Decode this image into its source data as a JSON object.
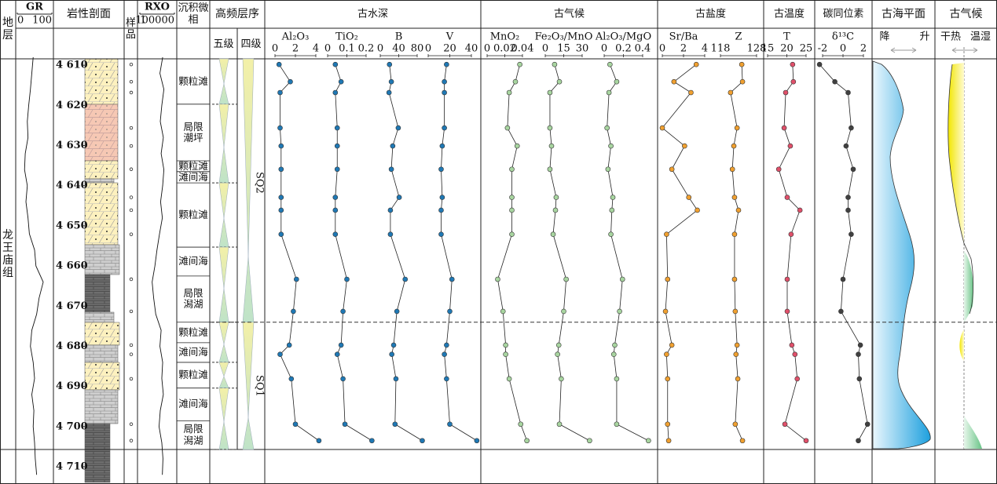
{
  "chart_data": {
    "type": "well-log",
    "formation": "龙王庙组",
    "headers": {
      "strata": "地层",
      "lithology": "岩性剖面",
      "samples": "样品",
      "facies": "沉积微相",
      "sequence": "高频层序",
      "sequence_5": "五级",
      "sequence_4": "四级",
      "sea_level": "古海平面",
      "sea_fall": "降",
      "sea_rise": "升",
      "climate": "古气候",
      "climate_dry": "干热",
      "climate_wet": "温湿"
    },
    "ylim": [
      4608.4,
      4705.7
    ],
    "depth_ticks": [
      {
        "value": 4610,
        "label": "4 610"
      },
      {
        "value": 4620,
        "label": "4 620"
      },
      {
        "value": 4630,
        "label": "4 630"
      },
      {
        "value": 4640,
        "label": "4 640"
      },
      {
        "value": 4650,
        "label": "4 650"
      },
      {
        "value": 4660,
        "label": "4 660"
      },
      {
        "value": 4670,
        "label": "4 670"
      },
      {
        "value": 4680,
        "label": "4 680"
      },
      {
        "value": 4690,
        "label": "4 690"
      },
      {
        "value": 4700,
        "label": "4 700"
      },
      {
        "value": 4710,
        "label": "4 710"
      }
    ],
    "log_depths": [
      4608,
      4612,
      4616,
      4620,
      4624,
      4628,
      4632,
      4636,
      4640,
      4644,
      4648,
      4652,
      4656,
      4660,
      4664,
      4668,
      4672,
      4676,
      4680,
      4684,
      4688,
      4692,
      4696,
      4700,
      4704,
      4708,
      4712
    ],
    "gr": {
      "name": "GR",
      "xlim": [
        0,
        100
      ],
      "xticks": [
        0,
        100
      ],
      "values": [
        46,
        42,
        38,
        33,
        29,
        31,
        23,
        21,
        29,
        25,
        31,
        35,
        50,
        54,
        75,
        63,
        56,
        42,
        38,
        46,
        50,
        42,
        48,
        46,
        50,
        52,
        56
      ]
    },
    "rxo": {
      "name": "RXO",
      "log": true,
      "xlim": [
        1,
        100000
      ],
      "xticks": [
        1,
        100000
      ],
      "values": [
        2000,
        800,
        3000,
        1500,
        900,
        2500,
        1200,
        3000,
        2000,
        1000,
        1800,
        700,
        300,
        150,
        60,
        100,
        200,
        1200,
        800,
        2000,
        1500,
        2500,
        900,
        600,
        1500,
        2200,
        1800
      ]
    },
    "depths": [
      4609.8,
      4614.1,
      4616.8,
      4625.6,
      4630.1,
      4635.9,
      4642.9,
      4646.1,
      4652.1,
      4663.3,
      4671.3,
      4679.7,
      4682.0,
      4688.1,
      4699.4,
      4703.5
    ],
    "groups": [
      {
        "title": "古水深",
        "panels": [
          {
            "name": "Al₂O₃",
            "color": "#1f78b4",
            "xlim": [
              0,
              4
            ],
            "xticks": [
              0,
              2,
              4
            ],
            "values": [
              0.4,
              1.5,
              0.5,
              0.5,
              0.6,
              0.6,
              0.6,
              0.6,
              0.6,
              2.1,
              1.8,
              1.4,
              0.5,
              1.6,
              2.0,
              4.3
            ]
          },
          {
            "name": "TiO₂",
            "color": "#1f78b4",
            "xlim": [
              0,
              0.2
            ],
            "xticks": [
              0,
              0.1,
              0.2
            ],
            "values": [
              0.04,
              0.07,
              0.04,
              0.05,
              0.05,
              0.05,
              0.04,
              0.04,
              0.04,
              0.1,
              0.08,
              0.07,
              0.05,
              0.08,
              0.09,
              0.23
            ]
          },
          {
            "name": "B",
            "color": "#1f78b4",
            "xlim": [
              0,
              80
            ],
            "xticks": [
              0,
              40,
              80
            ],
            "values": [
              20,
              24,
              19,
              39,
              27,
              24,
              41,
              22,
              22,
              54,
              36,
              29,
              25,
              34,
              32,
              91
            ]
          },
          {
            "name": "V",
            "color": "#1f78b4",
            "xlim": [
              0,
              40
            ],
            "xticks": [
              0,
              20,
              40
            ],
            "values": [
              17,
              15,
              15,
              15,
              13,
              12,
              13,
              12,
              12,
              22,
              20,
              17,
              15,
              17,
              20,
              45
            ]
          }
        ]
      },
      {
        "title": "古气候",
        "panels": [
          {
            "name": "MnO₂",
            "color": "#a8d5a0",
            "xlim": [
              0,
              0.04
            ],
            "xticks": [
              0,
              0.02,
              0.04
            ],
            "values": [
              0.037,
              0.032,
              0.025,
              0.023,
              0.034,
              0.028,
              0.028,
              0.028,
              0.028,
              0.012,
              0.018,
              0.021,
              0.021,
              0.025,
              0.038,
              0.045
            ]
          },
          {
            "name": "Fe₂O₃/MnO",
            "color": "#a8d5a0",
            "xlim": [
              0,
              30
            ],
            "xticks": [
              0,
              15,
              30
            ],
            "values": [
              7.6,
              11.5,
              3.8,
              3.8,
              5.1,
              3.8,
              8.9,
              8.3,
              6.4,
              17,
              15,
              11,
              10,
              13,
              11.5,
              36
            ]
          },
          {
            "name": "Al₂O₃/MgO",
            "color": "#a8d5a0",
            "xlim": [
              0,
              0.4
            ],
            "xticks": [
              0,
              0.2,
              0.4
            ],
            "values": [
              0.06,
              0.13,
              0.05,
              0.03,
              0.07,
              0.04,
              0.09,
              0.08,
              0.07,
              0.19,
              0.16,
              0.11,
              0.1,
              0.13,
              0.13,
              0.46
            ]
          }
        ]
      },
      {
        "title": "古盐度",
        "panels": [
          {
            "name": "Sr/Ba",
            "color": "#f0a030",
            "xlim": [
              0,
              4
            ],
            "xticks": [
              0,
              2,
              4
            ],
            "values": [
              3.2,
              1.1,
              2.7,
              0.0,
              2.1,
              0.9,
              2.5,
              3.3,
              0.4,
              0.5,
              0.3,
              0.9,
              0.4,
              0.5,
              0.5,
              0.6
            ]
          },
          {
            "name": "Z",
            "color": "#f0a030",
            "xlim": [
              118,
              128
            ],
            "xticks": [
              118,
              128
            ],
            "values": [
              123.9,
              124.1,
              120.8,
              122.6,
              121.7,
              121.3,
              121.9,
              123.0,
              121.9,
              121.9,
              122.1,
              122.6,
              122.3,
              122.8,
              122.1,
              124.1
            ]
          }
        ]
      },
      {
        "title": "古温度",
        "panels": [
          {
            "name": "T",
            "color": "#e0506a",
            "xlim": [
              15,
              25
            ],
            "xticks": [
              15,
              20,
              25
            ],
            "values": [
              21.5,
              21.7,
              19.7,
              19.3,
              20.9,
              17.9,
              20.1,
              23.4,
              21.1,
              20.1,
              20.1,
              21.3,
              22.1,
              22.7,
              19.5,
              25.0
            ]
          }
        ]
      },
      {
        "title": "碳同位素",
        "panels": [
          {
            "name": "δ¹³C",
            "color": "#404040",
            "xlim": [
              -2,
              2
            ],
            "xticks": [
              -2,
              0,
              2
            ],
            "values": [
              -2.3,
              -0.8,
              0.5,
              0.8,
              0.3,
              1.0,
              0.5,
              0.5,
              0.8,
              0.0,
              -0.2,
              1.7,
              1.5,
              1.6,
              2.4,
              1.5
            ]
          }
        ]
      }
    ],
    "facies": [
      {
        "label": "颗粒滩",
        "top": 4608.4,
        "bottom": 4619.7
      },
      {
        "label": "局限潮坪",
        "top": 4619.7,
        "bottom": 4633.8
      },
      {
        "label": "颗粒滩",
        "top": 4633.8,
        "bottom": 4636.5
      },
      {
        "label": "滩间海",
        "top": 4636.5,
        "bottom": 4639.3
      },
      {
        "label": "颗粒滩",
        "top": 4639.3,
        "bottom": 4655.3
      },
      {
        "label": "滩间海",
        "top": 4655.3,
        "bottom": 4662.5
      },
      {
        "label": "局限潟湖",
        "top": 4662.5,
        "bottom": 4674.0
      },
      {
        "label": "颗粒滩",
        "top": 4674.0,
        "bottom": 4679.1
      },
      {
        "label": "滩间海",
        "top": 4679.1,
        "bottom": 4684.0
      },
      {
        "label": "颗粒滩",
        "top": 4684.0,
        "bottom": 4690.4
      },
      {
        "label": "滩间海",
        "top": 4690.4,
        "bottom": 4698.6
      },
      {
        "label": "局限潟湖",
        "top": 4698.6,
        "bottom": 4705.7
      }
    ],
    "cycles_5": [
      [
        4608.4,
        4619.7
      ],
      [
        4619.7,
        4639.3
      ],
      [
        4639.3,
        4655.3
      ],
      [
        4655.3,
        4674.0
      ],
      [
        4674.0,
        4684.0
      ],
      [
        4684.0,
        4690.4
      ],
      [
        4690.4,
        4705.7
      ]
    ],
    "sequences": [
      {
        "name": "SQ2",
        "top": 4608.4,
        "bottom": 4674.0
      },
      {
        "name": "SQ1",
        "top": 4674.0,
        "bottom": 4705.7
      }
    ],
    "boundary": 4674.0
  }
}
